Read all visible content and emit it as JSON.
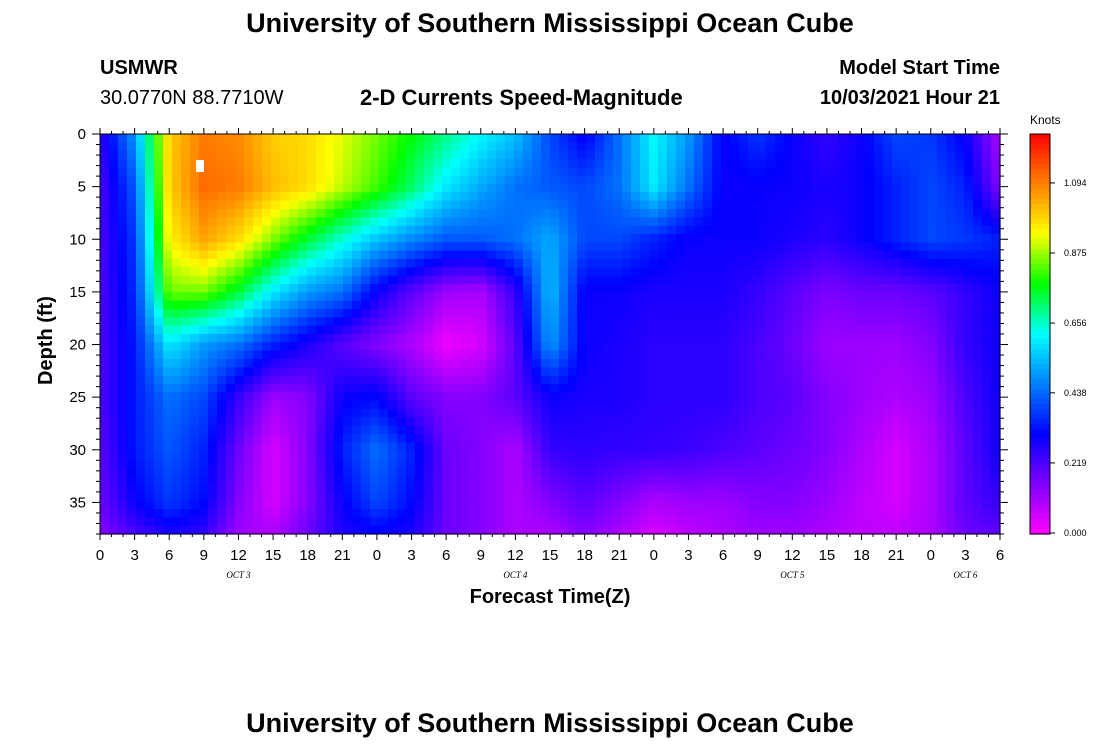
{
  "page": {
    "title_top": "University of Southern Mississippi Ocean Cube",
    "title_bottom": "University of Southern Mississippi Ocean Cube",
    "station": "USMWR",
    "coords": "30.0770N  88.7710W",
    "subtitle": "2-D Currents Speed-Magnitude",
    "model_start_label": "Model Start Time",
    "model_start_value": "10/03/2021 Hour 21"
  },
  "colors": {
    "palette": [
      "#ff00ff",
      "#7f00ff",
      "#0000ff",
      "#0080ff",
      "#00ffff",
      "#00ff00",
      "#ffff00",
      "#ff8000",
      "#ff0000"
    ]
  },
  "chart_data": {
    "type": "heatmap",
    "title": "2-D Currents Speed-Magnitude",
    "xlabel": "Forecast Time(Z)",
    "ylabel": "Depth (ft)",
    "x_tick_labels": [
      "0",
      "3",
      "6",
      "9",
      "12",
      "15",
      "18",
      "21",
      "0",
      "3",
      "6",
      "9",
      "12",
      "15",
      "18",
      "21",
      "0",
      "3",
      "6",
      "9",
      "12",
      "15",
      "18",
      "21",
      "0",
      "3",
      "6"
    ],
    "day_labels": [
      {
        "label": "OCT 3",
        "at_hour": 12
      },
      {
        "label": "OCT 4",
        "at_hour": 36
      },
      {
        "label": "OCT 5",
        "at_hour": 60
      },
      {
        "label": "OCT 6",
        "at_hour": 75
      }
    ],
    "xlim": [
      0,
      78
    ],
    "y_ticks": [
      0,
      5,
      10,
      15,
      20,
      25,
      30,
      35
    ],
    "ylim": [
      0,
      38
    ],
    "y_inverted": true,
    "colorbar": {
      "title": "Knots",
      "ticks": [
        "0.000",
        "0.219",
        "0.438",
        "0.656",
        "0.875",
        "1.094"
      ],
      "range": [
        0,
        1.25
      ]
    },
    "grid_x_hours": [
      0,
      3,
      6,
      9,
      12,
      15,
      18,
      21,
      24,
      27,
      30,
      33,
      36,
      39,
      42,
      45,
      48,
      51,
      54,
      57,
      60,
      63,
      66,
      69,
      72,
      75,
      78
    ],
    "grid_depths_ft": [
      0,
      5,
      10,
      15,
      20,
      25,
      30,
      35,
      38
    ],
    "speed_knots": [
      [
        0.25,
        0.5,
        1.0,
        1.1,
        1.08,
        1.0,
        0.98,
        0.92,
        0.85,
        0.78,
        0.7,
        0.62,
        0.55,
        0.4,
        0.3,
        0.45,
        0.62,
        0.5,
        0.3,
        0.38,
        0.3,
        0.25,
        0.3,
        0.4,
        0.38,
        0.3,
        0.1
      ],
      [
        0.22,
        0.42,
        1.0,
        1.12,
        1.1,
        1.02,
        0.98,
        0.9,
        0.82,
        0.72,
        0.6,
        0.52,
        0.45,
        0.42,
        0.4,
        0.45,
        0.6,
        0.45,
        0.3,
        0.3,
        0.3,
        0.28,
        0.3,
        0.35,
        0.4,
        0.35,
        0.15
      ],
      [
        0.22,
        0.38,
        0.95,
        1.05,
        0.98,
        0.86,
        0.75,
        0.65,
        0.55,
        0.48,
        0.42,
        0.42,
        0.45,
        0.52,
        0.4,
        0.4,
        0.35,
        0.3,
        0.3,
        0.3,
        0.28,
        0.26,
        0.3,
        0.35,
        0.4,
        0.38,
        0.35
      ],
      [
        0.22,
        0.36,
        0.85,
        0.85,
        0.75,
        0.6,
        0.5,
        0.45,
        0.3,
        0.2,
        0.12,
        0.1,
        0.25,
        0.55,
        0.3,
        0.3,
        0.28,
        0.28,
        0.28,
        0.25,
        0.2,
        0.16,
        0.18,
        0.18,
        0.2,
        0.25,
        0.3
      ],
      [
        0.22,
        0.34,
        0.6,
        0.5,
        0.45,
        0.35,
        0.28,
        0.2,
        0.15,
        0.1,
        0.02,
        0.05,
        0.2,
        0.5,
        0.3,
        0.28,
        0.26,
        0.26,
        0.26,
        0.22,
        0.18,
        0.12,
        0.12,
        0.12,
        0.15,
        0.25,
        0.3
      ],
      [
        0.22,
        0.34,
        0.45,
        0.4,
        0.25,
        0.12,
        0.15,
        0.3,
        0.32,
        0.2,
        0.15,
        0.15,
        0.2,
        0.3,
        0.28,
        0.28,
        0.26,
        0.26,
        0.26,
        0.22,
        0.2,
        0.15,
        0.12,
        0.1,
        0.12,
        0.22,
        0.3
      ],
      [
        0.2,
        0.34,
        0.42,
        0.35,
        0.18,
        0.05,
        0.15,
        0.35,
        0.45,
        0.35,
        0.18,
        0.15,
        0.1,
        0.25,
        0.26,
        0.25,
        0.25,
        0.24,
        0.22,
        0.2,
        0.18,
        0.15,
        0.1,
        0.05,
        0.1,
        0.2,
        0.3
      ],
      [
        0.18,
        0.3,
        0.38,
        0.32,
        0.15,
        0.05,
        0.15,
        0.3,
        0.4,
        0.32,
        0.18,
        0.15,
        0.1,
        0.15,
        0.2,
        0.15,
        0.1,
        0.12,
        0.12,
        0.15,
        0.15,
        0.12,
        0.08,
        0.05,
        0.1,
        0.2,
        0.25
      ],
      [
        0.15,
        0.22,
        0.28,
        0.25,
        0.12,
        0.1,
        0.18,
        0.28,
        0.3,
        0.28,
        0.18,
        0.15,
        0.1,
        0.1,
        0.15,
        0.1,
        0.05,
        0.08,
        0.1,
        0.12,
        0.12,
        0.1,
        0.08,
        0.08,
        0.1,
        0.18,
        0.2
      ]
    ]
  }
}
